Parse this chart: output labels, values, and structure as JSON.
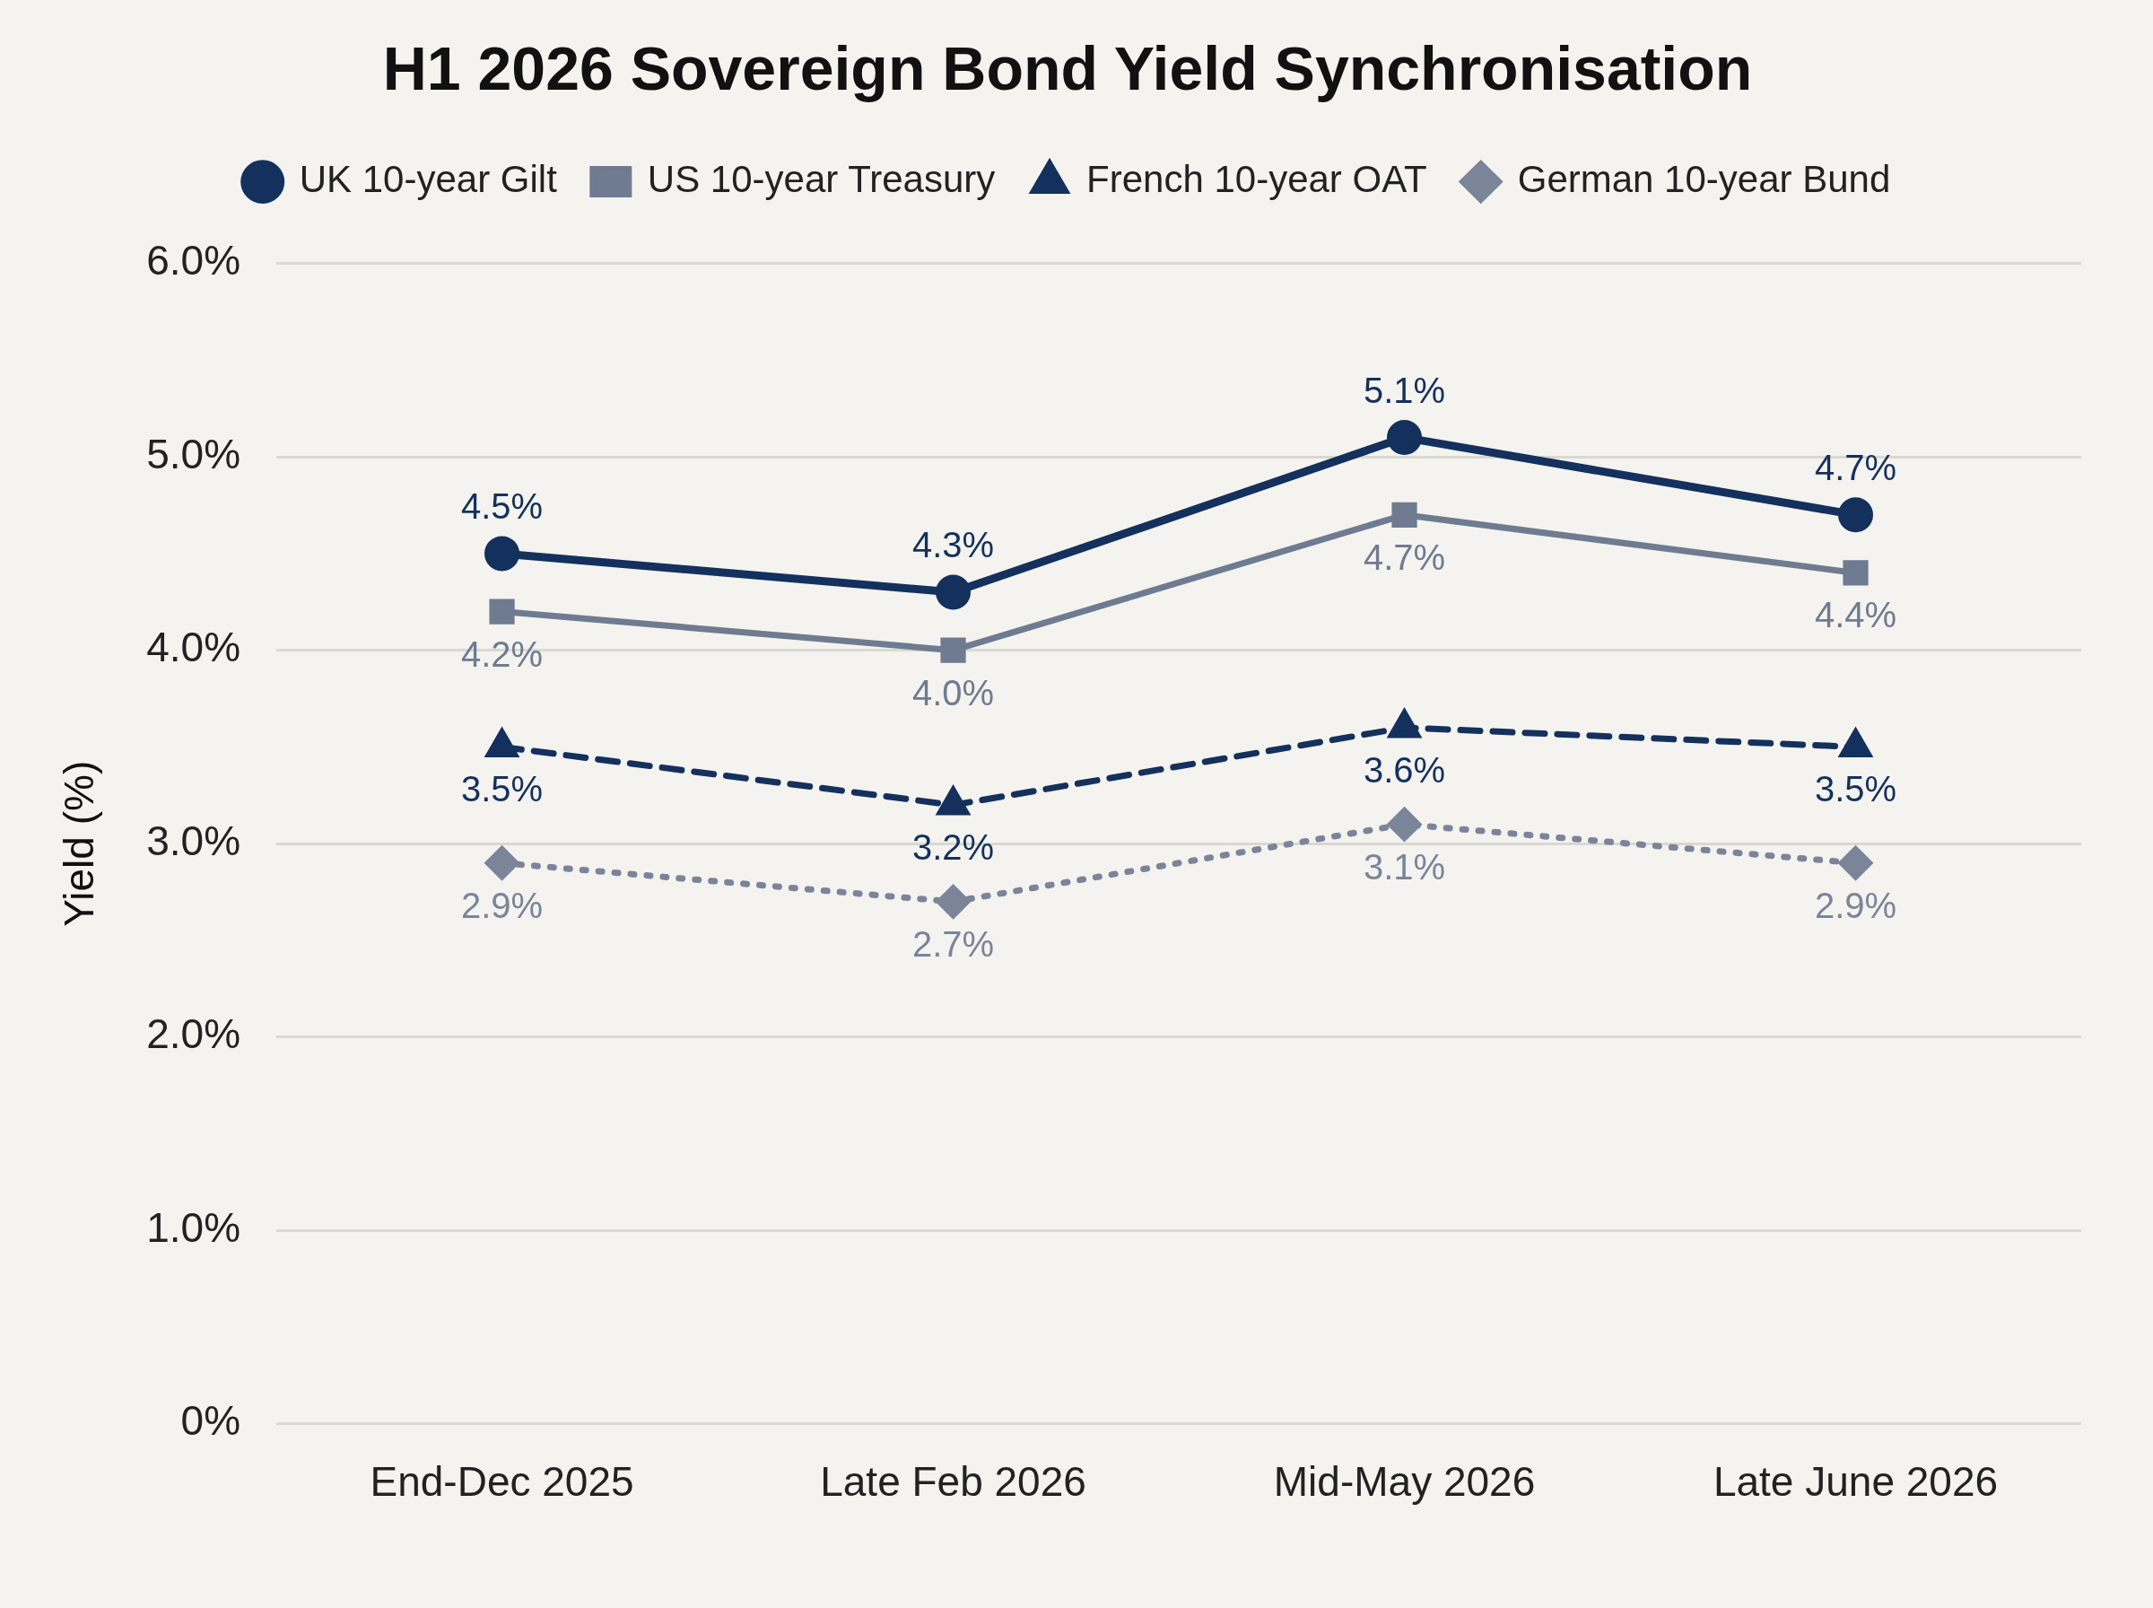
{
  "chart_data": {
    "type": "line",
    "title": "H1 2026 Sovereign Bond Yield Synchronisation",
    "ylabel": "Yield (%)",
    "categories": [
      "End-Dec 2025",
      "Late Feb 2026",
      "Mid-May 2026",
      "Late June 2026"
    ],
    "series": [
      {
        "name": "UK 10-year Gilt",
        "color": "#13315c",
        "values": [
          4.5,
          4.3,
          5.1,
          4.7
        ],
        "value_labels": [
          "4.5%",
          "4.3%",
          "5.1%",
          "4.7%"
        ],
        "marker": "circle",
        "line_style": "solid"
      },
      {
        "name": "US 10-year Treasury",
        "color": "#6e7b91",
        "values": [
          4.2,
          4.0,
          4.7,
          4.4
        ],
        "value_labels": [
          "4.2%",
          "4.0%",
          "4.7%",
          "4.4%"
        ],
        "marker": "square",
        "line_style": "solid"
      },
      {
        "name": "French 10-year OAT",
        "color": "#13315c",
        "values": [
          3.5,
          3.2,
          3.6,
          3.5
        ],
        "value_labels": [
          "3.5%",
          "3.2%",
          "3.6%",
          "3.5%"
        ],
        "marker": "triangle",
        "line_style": "dashed"
      },
      {
        "name": "German 10-year Bund",
        "color": "#7a8599",
        "values": [
          2.9,
          2.7,
          3.1,
          2.9
        ],
        "value_labels": [
          "2.9%",
          "2.7%",
          "3.1%",
          "2.9%"
        ],
        "marker": "diamond",
        "line_style": "dotted"
      }
    ],
    "ylim": [
      0,
      6
    ],
    "yticks": [
      {
        "value": 0,
        "label": "0%"
      },
      {
        "value": 1,
        "label": "1.0%"
      },
      {
        "value": 2,
        "label": "2.0%"
      },
      {
        "value": 3,
        "label": "3.0%"
      },
      {
        "value": 4,
        "label": "4.0%"
      },
      {
        "value": 5,
        "label": "5.0%"
      },
      {
        "value": 6,
        "label": "6.0%"
      }
    ],
    "grid": "y",
    "legend": "top"
  }
}
